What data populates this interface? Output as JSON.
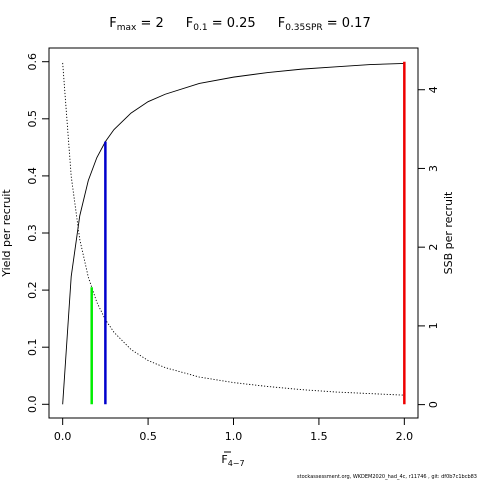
{
  "chart_data": {
    "type": "line",
    "title_items": [
      {
        "base": "F",
        "sub": "max",
        "text": " = 2"
      },
      {
        "base": "F",
        "sub": "0.1",
        "text": " = 0.25"
      },
      {
        "base": "F",
        "sub": "0.35SPR",
        "text": " = 0.17"
      }
    ],
    "xlabel": {
      "base": "F",
      "sub": "4−7"
    },
    "ylabel": "Yield per recruit",
    "y2label": "SSB per recruit",
    "footer": "stockassessment.org, WKDEM2020_had_4c, r11746 , git: df0b7c1bcb83",
    "x": [
      0,
      0.05,
      0.1,
      0.15,
      0.2,
      0.25,
      0.3,
      0.4,
      0.5,
      0.6,
      0.8,
      1.0,
      1.2,
      1.4,
      1.6,
      1.8,
      2.0
    ],
    "series": [
      {
        "name": "Yield per recruit",
        "color": "#000000",
        "dash": "solid",
        "axis": "y",
        "values": [
          0,
          0.224,
          0.33,
          0.392,
          0.432,
          0.46,
          0.481,
          0.51,
          0.53,
          0.543,
          0.562,
          0.573,
          0.581,
          0.587,
          0.591,
          0.595,
          0.597
        ]
      },
      {
        "name": "SSB per recruit",
        "color": "#000000",
        "dash": "dotted",
        "axis": "y2",
        "values": [
          4.34,
          2.9,
          2.1,
          1.62,
          1.3,
          1.08,
          0.92,
          0.7,
          0.56,
          0.47,
          0.35,
          0.28,
          0.23,
          0.19,
          0.16,
          0.14,
          0.12
        ]
      }
    ],
    "vlines": [
      {
        "x": 0.17,
        "y": 0.205,
        "color": "#00ee00"
      },
      {
        "x": 0.25,
        "y": 0.46,
        "color": "#0000cc"
      },
      {
        "x": 2.0,
        "y": 0.6,
        "color": "#ee0000"
      }
    ],
    "xlim": [
      -0.08,
      2.08
    ],
    "ylim": [
      -0.024,
      0.624
    ],
    "y2lim": [
      -0.17,
      4.53
    ],
    "xticks": [
      {
        "value": 0,
        "label": "0.0"
      },
      0.5,
      {
        "value": 1,
        "label": "1.0"
      },
      1.5,
      {
        "value": 2,
        "label": "2.0"
      }
    ],
    "yticks": [
      {
        "value": 0,
        "label": "0.0"
      },
      0.1,
      0.2,
      0.3,
      0.4,
      0.5,
      0.6
    ],
    "y2ticks": [
      0,
      1,
      2,
      3,
      4
    ]
  }
}
